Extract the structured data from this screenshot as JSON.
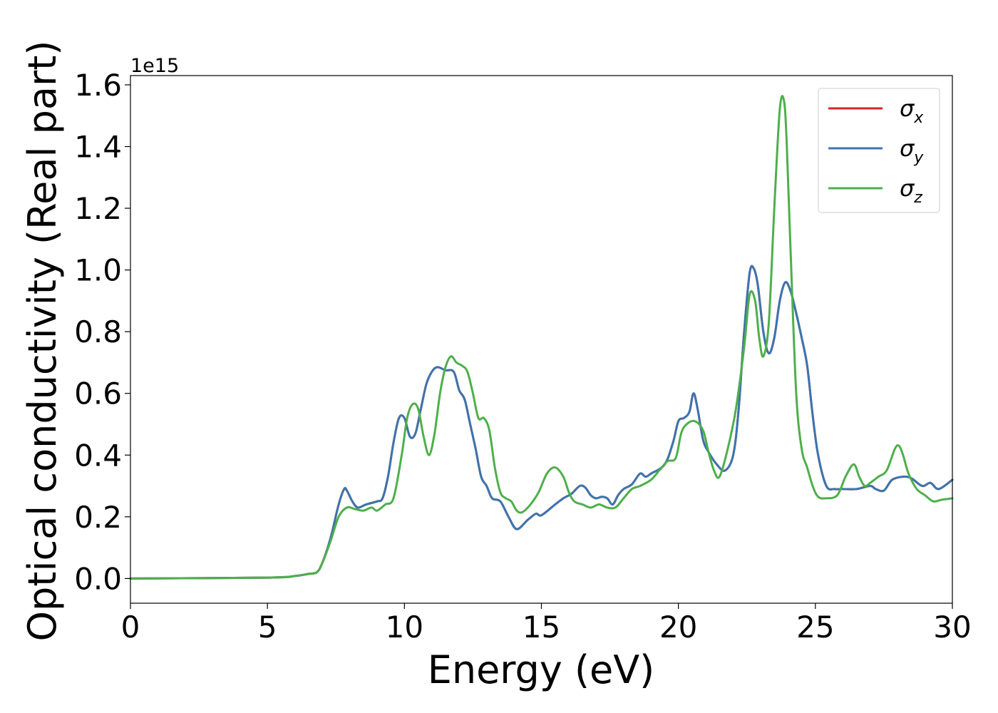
{
  "chart_data": {
    "type": "line",
    "title": "",
    "xlabel": "Energy (eV)",
    "ylabel": "Optical conductivity (Real part)",
    "offset_text": "1e15",
    "xlim": [
      0,
      30
    ],
    "ylim": [
      -0.08,
      1.63
    ],
    "y_scale_factor": "1e15",
    "xticks": [
      0,
      5,
      10,
      15,
      20,
      25,
      30
    ],
    "xtick_labels": [
      "0",
      "5",
      "10",
      "15",
      "20",
      "25",
      "30"
    ],
    "yticks": [
      0.0,
      0.2,
      0.4,
      0.6,
      0.8,
      1.0,
      1.2,
      1.4,
      1.6
    ],
    "ytick_labels": [
      "0.0",
      "0.2",
      "0.4",
      "0.6",
      "0.8",
      "1.0",
      "1.2",
      "1.4",
      "1.6"
    ],
    "grid": false,
    "legend": {
      "position": "top-right"
    },
    "series": [
      {
        "name": "σx",
        "sym": "σ",
        "sub": "x",
        "color": "#d62728",
        "x": [
          0,
          5,
          6,
          6.5,
          6.8,
          7,
          7.3,
          7.6,
          7.8,
          7.9,
          8.1,
          8.3,
          8.6,
          9,
          9.2,
          9.4,
          9.6,
          9.8,
          10,
          10.2,
          10.4,
          10.6,
          10.8,
          11,
          11.2,
          11.5,
          11.8,
          12,
          12.2,
          12.4,
          12.6,
          12.8,
          13,
          13.2,
          13.5,
          13.8,
          14.1,
          14.5,
          14.8,
          15,
          15.5,
          15.8,
          16.1,
          16.4,
          16.6,
          16.8,
          17,
          17.2,
          17.4,
          17.6,
          17.8,
          18,
          18.3,
          18.6,
          18.8,
          19,
          19.5,
          19.8,
          20,
          20.2,
          20.4,
          20.55,
          20.7,
          20.9,
          21.1,
          21.4,
          21.7,
          22,
          22.2,
          22.4,
          22.6,
          22.75,
          22.9,
          23.1,
          23.3,
          23.5,
          23.7,
          23.9,
          24.1,
          24.3,
          24.5,
          24.7,
          24.9,
          25.1,
          25.4,
          25.7,
          26,
          26.5,
          27,
          27.2,
          27.5,
          27.8,
          28.2,
          28.5,
          28.9,
          29.2,
          29.5,
          30
        ],
        "y": [
          0,
          0.003,
          0.008,
          0.015,
          0.02,
          0.05,
          0.13,
          0.24,
          0.29,
          0.285,
          0.25,
          0.23,
          0.24,
          0.25,
          0.26,
          0.33,
          0.44,
          0.52,
          0.52,
          0.46,
          0.47,
          0.55,
          0.63,
          0.67,
          0.685,
          0.675,
          0.67,
          0.61,
          0.58,
          0.5,
          0.42,
          0.33,
          0.3,
          0.26,
          0.25,
          0.2,
          0.16,
          0.19,
          0.21,
          0.205,
          0.24,
          0.26,
          0.275,
          0.3,
          0.295,
          0.27,
          0.26,
          0.265,
          0.26,
          0.24,
          0.27,
          0.29,
          0.305,
          0.34,
          0.33,
          0.34,
          0.37,
          0.44,
          0.51,
          0.52,
          0.54,
          0.6,
          0.55,
          0.45,
          0.41,
          0.37,
          0.35,
          0.4,
          0.55,
          0.8,
          0.99,
          1.005,
          0.95,
          0.8,
          0.73,
          0.78,
          0.9,
          0.96,
          0.93,
          0.86,
          0.78,
          0.69,
          0.53,
          0.4,
          0.3,
          0.29,
          0.29,
          0.29,
          0.3,
          0.29,
          0.285,
          0.32,
          0.33,
          0.325,
          0.3,
          0.31,
          0.29,
          0.32
        ]
      },
      {
        "name": "σy",
        "sym": "σ",
        "sub": "y",
        "color": "#3b75af",
        "x": [
          0,
          5,
          6,
          6.5,
          6.8,
          7,
          7.3,
          7.6,
          7.8,
          7.9,
          8.1,
          8.3,
          8.6,
          9,
          9.2,
          9.4,
          9.6,
          9.8,
          10,
          10.2,
          10.4,
          10.6,
          10.8,
          11,
          11.2,
          11.5,
          11.8,
          12,
          12.2,
          12.4,
          12.6,
          12.8,
          13,
          13.2,
          13.5,
          13.8,
          14.1,
          14.5,
          14.8,
          15,
          15.5,
          15.8,
          16.1,
          16.4,
          16.6,
          16.8,
          17,
          17.2,
          17.4,
          17.6,
          17.8,
          18,
          18.3,
          18.6,
          18.8,
          19,
          19.5,
          19.8,
          20,
          20.2,
          20.4,
          20.55,
          20.7,
          20.9,
          21.1,
          21.4,
          21.7,
          22,
          22.2,
          22.4,
          22.6,
          22.75,
          22.9,
          23.1,
          23.3,
          23.5,
          23.7,
          23.9,
          24.1,
          24.3,
          24.5,
          24.7,
          24.9,
          25.1,
          25.4,
          25.7,
          26,
          26.5,
          27,
          27.2,
          27.5,
          27.8,
          28.2,
          28.5,
          28.9,
          29.2,
          29.5,
          30
        ],
        "y": [
          0,
          0.003,
          0.008,
          0.015,
          0.02,
          0.05,
          0.13,
          0.24,
          0.29,
          0.285,
          0.25,
          0.23,
          0.24,
          0.25,
          0.26,
          0.33,
          0.44,
          0.52,
          0.52,
          0.46,
          0.47,
          0.55,
          0.63,
          0.67,
          0.685,
          0.675,
          0.67,
          0.61,
          0.58,
          0.5,
          0.42,
          0.33,
          0.3,
          0.26,
          0.25,
          0.2,
          0.16,
          0.19,
          0.21,
          0.205,
          0.24,
          0.26,
          0.275,
          0.3,
          0.295,
          0.27,
          0.26,
          0.265,
          0.26,
          0.24,
          0.27,
          0.29,
          0.305,
          0.34,
          0.33,
          0.34,
          0.37,
          0.44,
          0.51,
          0.52,
          0.54,
          0.6,
          0.55,
          0.45,
          0.41,
          0.37,
          0.35,
          0.4,
          0.55,
          0.8,
          0.99,
          1.005,
          0.95,
          0.8,
          0.73,
          0.78,
          0.9,
          0.96,
          0.93,
          0.86,
          0.78,
          0.69,
          0.53,
          0.4,
          0.3,
          0.29,
          0.29,
          0.29,
          0.3,
          0.29,
          0.285,
          0.32,
          0.33,
          0.325,
          0.3,
          0.31,
          0.29,
          0.32
        ]
      },
      {
        "name": "σz",
        "sym": "σ",
        "sub": "z",
        "color": "#4daf4a",
        "x": [
          0,
          5,
          6,
          6.5,
          6.8,
          7,
          7.3,
          7.6,
          7.9,
          8.2,
          8.5,
          8.8,
          9,
          9.3,
          9.6,
          9.9,
          10.1,
          10.3,
          10.5,
          10.7,
          10.9,
          11.1,
          11.3,
          11.5,
          11.7,
          11.9,
          12.1,
          12.3,
          12.5,
          12.7,
          12.9,
          13.1,
          13.3,
          13.5,
          13.7,
          13.9,
          14.1,
          14.3,
          14.6,
          14.9,
          15.2,
          15.5,
          15.8,
          16,
          16.2,
          16.5,
          16.8,
          17.1,
          17.4,
          17.7,
          18,
          18.3,
          18.6,
          19,
          19.3,
          19.6,
          19.9,
          20.1,
          20.3,
          20.6,
          20.9,
          21.1,
          21.3,
          21.5,
          21.8,
          22.1,
          22.4,
          22.6,
          22.8,
          22.95,
          23.1,
          23.3,
          23.5,
          23.7,
          23.85,
          23.95,
          24.1,
          24.3,
          24.5,
          24.7,
          24.9,
          25.1,
          25.4,
          25.8,
          26.1,
          26.4,
          26.6,
          26.8,
          27,
          27.3,
          27.6,
          27.9,
          28.05,
          28.2,
          28.4,
          28.7,
          29,
          29.3,
          29.6,
          30
        ],
        "y": [
          0,
          0.003,
          0.008,
          0.015,
          0.02,
          0.05,
          0.12,
          0.2,
          0.23,
          0.225,
          0.22,
          0.23,
          0.22,
          0.24,
          0.26,
          0.4,
          0.52,
          0.565,
          0.55,
          0.46,
          0.4,
          0.47,
          0.6,
          0.685,
          0.72,
          0.7,
          0.69,
          0.67,
          0.6,
          0.52,
          0.52,
          0.48,
          0.36,
          0.28,
          0.26,
          0.25,
          0.22,
          0.215,
          0.24,
          0.28,
          0.34,
          0.36,
          0.33,
          0.28,
          0.25,
          0.24,
          0.23,
          0.24,
          0.23,
          0.23,
          0.26,
          0.29,
          0.3,
          0.32,
          0.35,
          0.38,
          0.39,
          0.47,
          0.5,
          0.51,
          0.48,
          0.41,
          0.35,
          0.33,
          0.42,
          0.55,
          0.75,
          0.92,
          0.9,
          0.78,
          0.72,
          0.83,
          1.2,
          1.52,
          1.55,
          1.42,
          1.05,
          0.6,
          0.42,
          0.36,
          0.3,
          0.265,
          0.26,
          0.27,
          0.33,
          0.37,
          0.33,
          0.3,
          0.31,
          0.33,
          0.35,
          0.42,
          0.43,
          0.4,
          0.34,
          0.29,
          0.27,
          0.25,
          0.255,
          0.26
        ]
      }
    ]
  }
}
